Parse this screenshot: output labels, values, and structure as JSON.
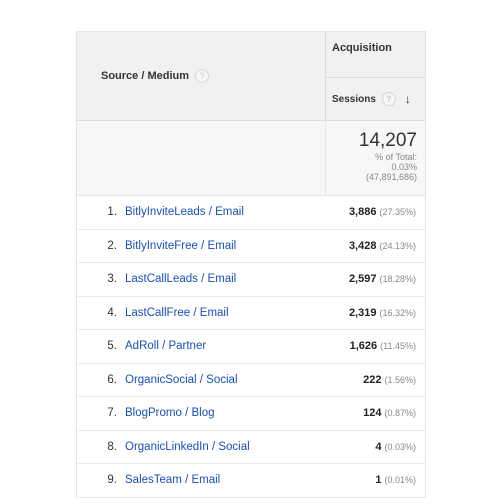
{
  "header": {
    "source_medium_label": "Source / Medium",
    "acquisition_label": "Acquisition",
    "sessions_label": "Sessions",
    "help_glyph": "?",
    "sort_arrow": "↓"
  },
  "totals": {
    "value": "14,207",
    "pct_label": "% of Total:",
    "pct_value": "0.03%",
    "grand_total": "(47,891,686)"
  },
  "rows": [
    {
      "num": "1.",
      "source": "BitlyInviteLeads / Email",
      "sessions": "3,886",
      "pct": "(27.35%)"
    },
    {
      "num": "2.",
      "source": "BitlyInviteFree / Email",
      "sessions": "3,428",
      "pct": "(24.13%)"
    },
    {
      "num": "3.",
      "source": "LastCallLeads / Email",
      "sessions": "2,597",
      "pct": "(18.28%)"
    },
    {
      "num": "4.",
      "source": "LastCallFree / Email",
      "sessions": "2,319",
      "pct": "(16.32%)"
    },
    {
      "num": "5.",
      "source": "AdRoll / Partner",
      "sessions": "1,626",
      "pct": "(11.45%)"
    },
    {
      "num": "6.",
      "source": "OrganicSocial / Social",
      "sessions": "222",
      "pct": "(1.56%)"
    },
    {
      "num": "7.",
      "source": "BlogPromo / Blog",
      "sessions": "124",
      "pct": "(0.87%)"
    },
    {
      "num": "8.",
      "source": "OrganicLinkedIn / Social",
      "sessions": "4",
      "pct": "(0.03%)"
    },
    {
      "num": "9.",
      "source": "SalesTeam / Email",
      "sessions": "1",
      "pct": "(0.01%)"
    }
  ]
}
